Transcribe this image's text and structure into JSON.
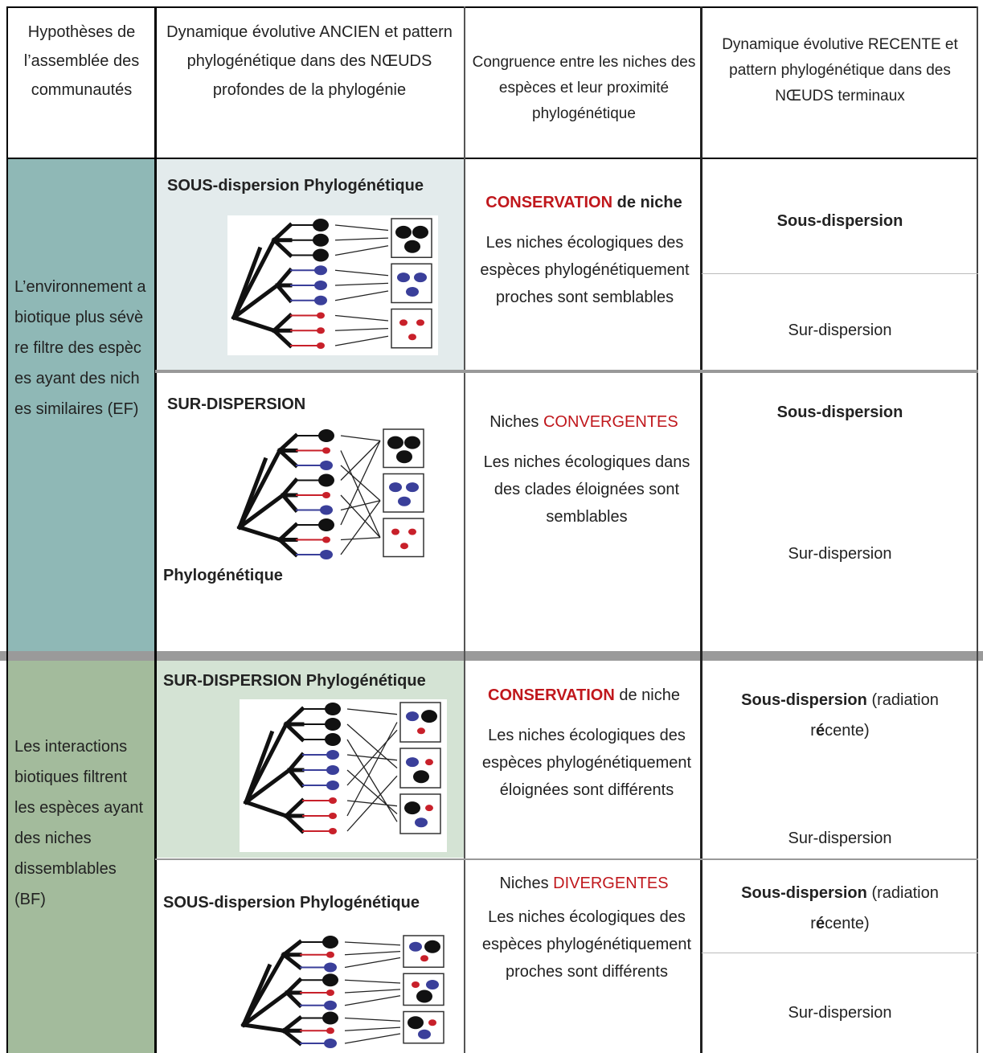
{
  "header": {
    "col1": "Hypothèses de l’assemblée des communautés",
    "col2": "Dynamique évolutive ANCIEN et pattern phylogénétique dans des NŒUDS profondes de la phylogénie",
    "col3": "Congruence entre les niches des espèces et leur proximité phylogénétique",
    "col4": "Dynamique évolutive RECENTE et pattern phylogénétique dans des NŒUDS terminaux"
  },
  "groups": [
    {
      "hypothesis": "L’environnement abiotique plus sévère filtre des espèces ayant des niches similaires (EF)",
      "rows": [
        {
          "pattern": [
            "SOUS-dispersion Phylogénétique"
          ],
          "niche": [
            "CONSERVATION",
            "de niche"
          ],
          "description": "Les niches écologiques des espèces phylogénétiquement proches sont semblables",
          "recent": [
            [
              "Sous-dispersion"
            ],
            [
              "Sur-dispersion"
            ]
          ]
        },
        {
          "pattern": [
            "SUR-DISPERSION",
            "Phylogénétique"
          ],
          "niche": [
            "Niches",
            "CONVERGENTES"
          ],
          "description": "Les niches écologiques dans des clades éloignées sont semblables",
          "recent": [
            [
              "Sous-dispersion"
            ],
            [
              "Sur-dispersion"
            ]
          ]
        }
      ]
    },
    {
      "hypothesis": "Les interactions biotiques filtrent les espèces ayant des niches dissemblables (BF)",
      "rows": [
        {
          "pattern": [
            "SUR-DISPERSION Phylogénétique"
          ],
          "niche": [
            "CONSERVATION",
            "de niche"
          ],
          "description": "Les niches écologiques des espèces phylogénétiquement éloignées sont différents",
          "recent": [
            [
              "Sous-dispersion",
              "(radiation r",
              "é",
              "cente)"
            ],
            [
              "Sur-dispersion"
            ]
          ]
        },
        {
          "pattern": [
            "SOUS-dispersion Phylogénétique"
          ],
          "niche": [
            "Niches",
            "DIVERGENTES"
          ],
          "description": "Les niches écologiques des espèces phylogénétiquement proches sont différents",
          "recent": [
            [
              "Sous-dispersion",
              "(radiation r",
              "é",
              "cente)"
            ],
            [
              "Sur-dispersion"
            ]
          ]
        }
      ]
    }
  ]
}
